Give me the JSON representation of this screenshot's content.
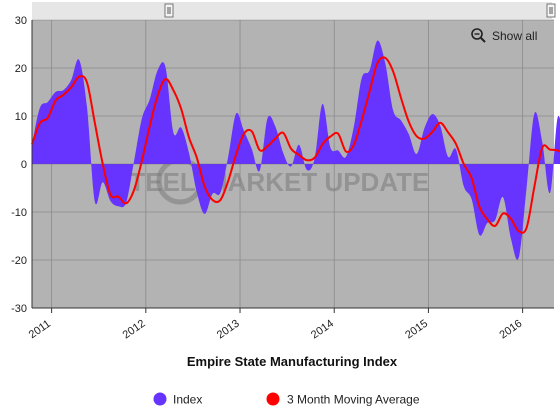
{
  "controls": {
    "show_all_label": "Show all"
  },
  "watermark": {
    "left": "STEEL",
    "right": "MARKET UPDATE"
  },
  "colors": {
    "index": "#6633ff",
    "moving_average": "#ff0000",
    "plot_bg": "#b3b3b3",
    "navigator": "#e6e6e6"
  },
  "chart_data": {
    "type": "area",
    "title": "Empire State Manufacturing Index",
    "x_start": "2010-09",
    "x_step": "month",
    "x_tick_labels": [
      "2011",
      "2012",
      "2013",
      "2014",
      "2015",
      "2016"
    ],
    "ylim": [
      -30,
      30
    ],
    "y_tick_labels": [
      "30",
      "20",
      "10",
      "0",
      "-10",
      "-20",
      "-30"
    ],
    "grid": true,
    "legend_position": "bottom-center",
    "series": [
      {
        "name": "Index",
        "style": "area",
        "values": [
          4.1,
          11.7,
          12.9,
          15,
          15.4,
          17.5,
          21.7,
          11.9,
          -7.8,
          -3.8,
          -7.7,
          -8.8,
          -8,
          0.6,
          9.5,
          13.5,
          19.5,
          20.2,
          6.6,
          7.6,
          2.3,
          -5.9,
          -10.4,
          -6.2,
          -6,
          1.6,
          10.5,
          6.9,
          3.1,
          -1.4,
          9.5,
          7.8,
          2.3,
          -0.5,
          4,
          -1.2,
          1.1,
          12.5,
          3.5,
          2.8,
          1.5,
          7.8,
          17.9,
          19.5,
          25.7,
          21,
          11.2,
          9.1,
          6.2,
          2.1,
          7.5,
          10.4,
          8,
          1.5,
          3.1,
          -4.6,
          -7.3,
          -14.8,
          -12.3,
          -11.7,
          -6.9,
          -15.5,
          -19.5,
          -5,
          10.5,
          4.6,
          -6,
          9.9,
          1.5,
          -4.2
        ]
      },
      {
        "name": "3 Month Moving Average",
        "style": "line",
        "values": [
          4.1,
          8.5,
          9.6,
          13.2,
          14.4,
          16,
          18.2,
          17,
          8.6,
          0.1,
          -6.4,
          -6.8,
          -8.2,
          -5.4,
          0.7,
          7.9,
          14.2,
          17.7,
          15.4,
          11.5,
          5.5,
          1.3,
          -4.7,
          -7.5,
          -7.5,
          -3.5,
          2,
          6.3,
          6.8,
          2.9,
          3.7,
          5.3,
          6.5,
          3.2,
          1.9,
          0.8,
          1.3,
          4.1,
          5.7,
          6.3,
          2.6,
          4,
          9.1,
          15.1,
          21,
          22.1,
          19.3,
          13.8,
          8.8,
          5.8,
          5.3,
          6.7,
          8.6,
          6.6,
          4.2,
          0,
          -2.9,
          -8.9,
          -11.5,
          -12.9,
          -10.3,
          -11.4,
          -14,
          -13.3,
          -4.7,
          3.4,
          3,
          2.8,
          1.8,
          2.4
        ]
      }
    ]
  }
}
